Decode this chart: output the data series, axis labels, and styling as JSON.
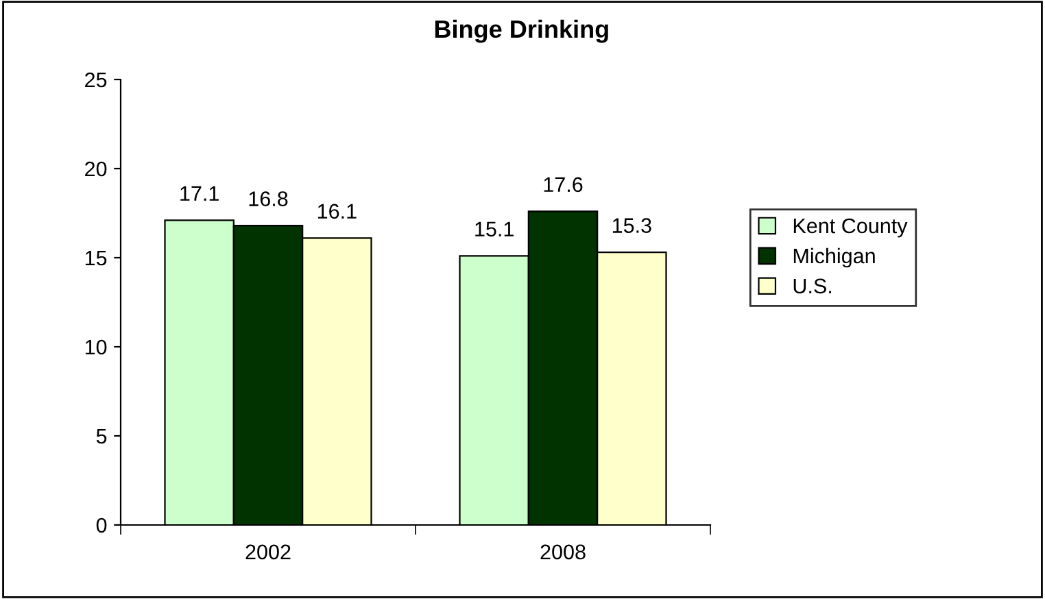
{
  "chart_data": {
    "type": "bar",
    "title": "Binge Drinking",
    "categories": [
      "2002",
      "2008"
    ],
    "series": [
      {
        "name": "Kent County",
        "color": "#ccffcc",
        "values": [
          17.1,
          15.1
        ]
      },
      {
        "name": "Michigan",
        "color": "#003300",
        "values": [
          16.8,
          17.6
        ]
      },
      {
        "name": "U.S.",
        "color": "#ffffcc",
        "values": [
          16.1,
          15.3
        ]
      }
    ],
    "ylim": [
      0,
      25
    ],
    "yticks": [
      0,
      5,
      10,
      15,
      20,
      25
    ],
    "grid": false,
    "legend": "right",
    "data_labels": true
  }
}
